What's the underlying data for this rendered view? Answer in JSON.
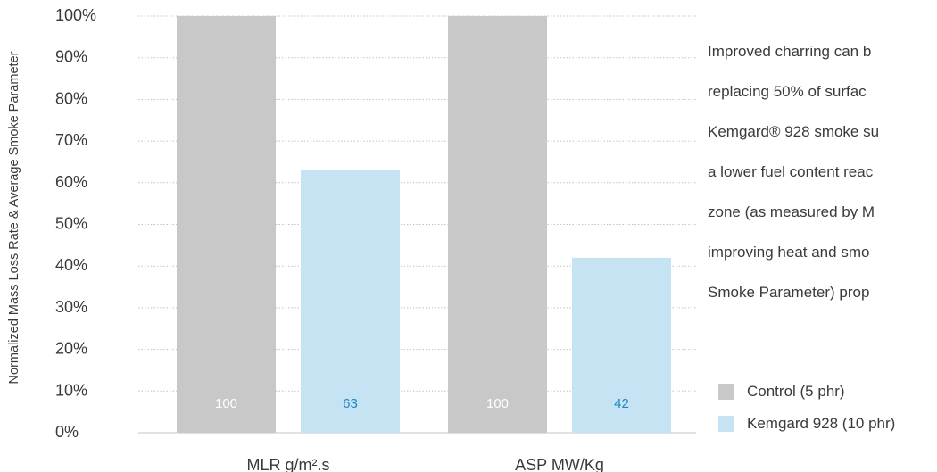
{
  "chart_data": {
    "type": "bar",
    "categories": [
      "MLR g/m².s",
      "ASP MW/Kg"
    ],
    "series": [
      {
        "name": "Control (5 phr)",
        "values": [
          100,
          100
        ],
        "color": "#c9c8c8",
        "label_color": "#ffffff"
      },
      {
        "name": "Kemgard 928 (10 phr)",
        "values": [
          63,
          42
        ],
        "color": "#c5e3f2",
        "label_color": "#1f86c6"
      }
    ],
    "data_labels": [
      [
        "100",
        "100"
      ],
      [
        "63",
        "42"
      ]
    ],
    "ylabel": "Normalized Mass Loss Rate & Average Smoke Parameter",
    "yticks": [
      "0%",
      "10%",
      "20%",
      "30%",
      "40%",
      "50%",
      "60%",
      "70%",
      "80%",
      "90%",
      "100%"
    ],
    "ylim": [
      0,
      100
    ],
    "grid": true,
    "legend_position": "bottom-right"
  },
  "annotation": {
    "lines": [
      "Improved charring can b",
      "replacing 50% of surfac",
      "Kemgard® 928 smoke su",
      "a lower fuel content reac",
      "zone (as measured by M",
      "improving heat and smo",
      "Smoke Parameter) prop"
    ]
  }
}
